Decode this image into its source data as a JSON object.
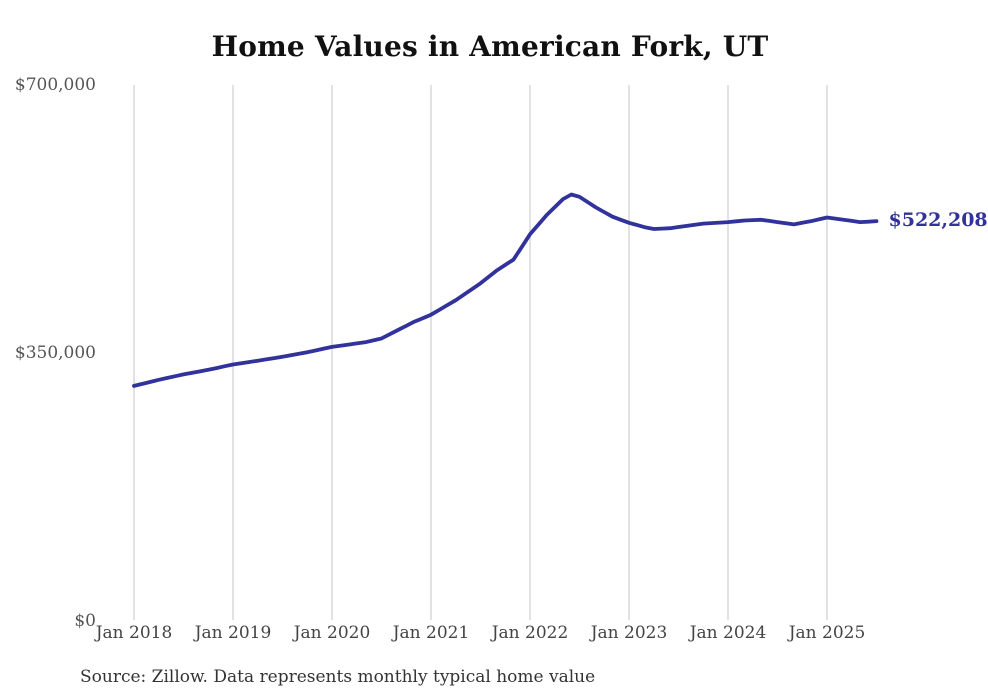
{
  "chart": {
    "title": "Home Values in American Fork, UT",
    "source_note": "Source: Zillow. Data represents monthly typical home value"
  },
  "chart_data": {
    "type": "line",
    "title": "Home Values in American Fork, UT",
    "xlabel": "",
    "ylabel": "",
    "x_start": "Jan 2018",
    "x_interval": "month",
    "x_ticks": [
      "Jan 2018",
      "Jan 2019",
      "Jan 2020",
      "Jan 2021",
      "Jan 2022",
      "Jan 2023",
      "Jan 2024",
      "Jan 2025"
    ],
    "y_ticks": [
      {
        "label": "$0",
        "value": 0
      },
      {
        "label": "$350,000",
        "value": 350000
      },
      {
        "label": "$700,000",
        "value": 700000
      }
    ],
    "ylim": [
      0,
      700000
    ],
    "grid": "vertical-only",
    "legend": "none",
    "end_label": "$522,208",
    "line_color": "#32329c",
    "gridline_color": "#c4c4c4",
    "series": [
      {
        "name": "Monthly typical home value",
        "values": [
          307000,
          309700,
          312300,
          315000,
          317300,
          319700,
          322000,
          324000,
          326000,
          328000,
          330300,
          332700,
          335000,
          336700,
          338300,
          340000,
          341700,
          343300,
          345000,
          347000,
          349000,
          351000,
          353300,
          355700,
          358000,
          359500,
          361000,
          362500,
          364000,
          366500,
          369000,
          374500,
          380000,
          385500,
          391000,
          395500,
          400000,
          406300,
          412700,
          419000,
          426300,
          433700,
          441000,
          449500,
          458000,
          465000,
          472000,
          488500,
          505000,
          517500,
          530000,
          540500,
          551000,
          557000,
          554000,
          547000,
          540000,
          534000,
          528000,
          524000,
          520000,
          517000,
          514000,
          512000,
          512500,
          513000,
          514500,
          516000,
          517500,
          519000,
          519700,
          520300,
          521000,
          522000,
          523000,
          523500,
          524000,
          522500,
          521000,
          519500,
          518000,
          520000,
          522000,
          524500,
          527000,
          525500,
          524000,
          522500,
          521000,
          521500,
          522208
        ]
      }
    ]
  }
}
